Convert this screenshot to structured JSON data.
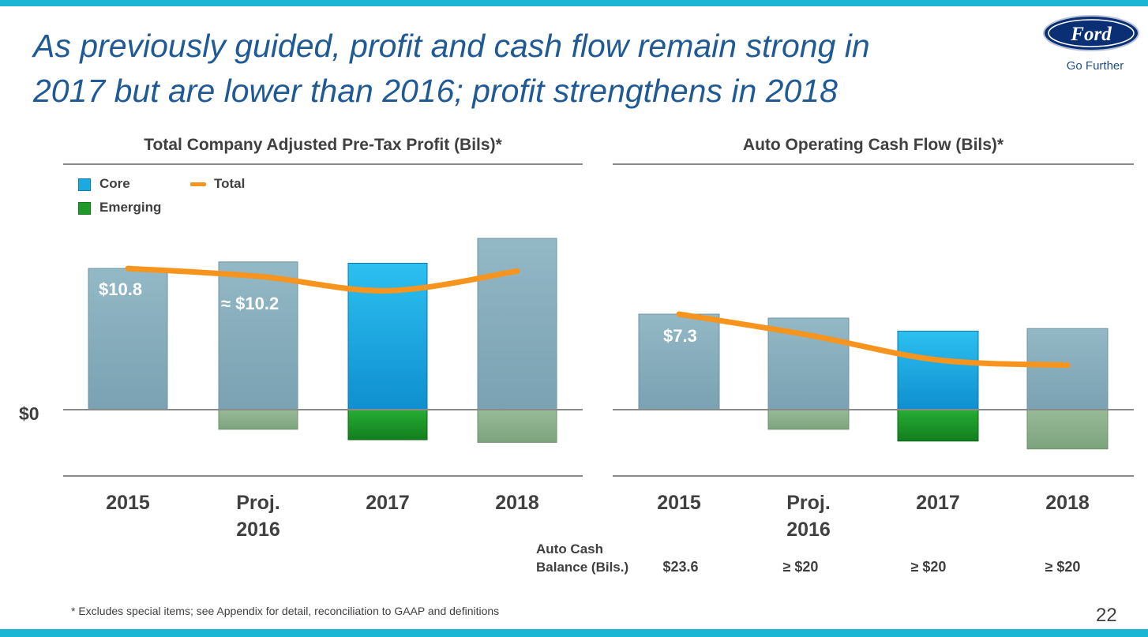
{
  "slide": {
    "title_line1": "As previously guided, profit and cash flow remain strong in",
    "title_line2": "2017 but are lower than 2016; profit strengthens in 2018",
    "logo_text": "Ford",
    "tagline": "Go Further",
    "footnote": "*  Excludes special items; see Appendix for detail, reconciliation to GAAP and definitions",
    "page_number": "22",
    "cash_balance_label_line1": "Auto Cash",
    "cash_balance_label_line2": "Balance (Bils.)",
    "cash_balance_values": [
      "$23.6",
      "≥ $20",
      "≥ $20",
      "≥ $20"
    ]
  },
  "legend": {
    "core": "Core",
    "emerging": "Emerging",
    "total": "Total"
  },
  "colors": {
    "accent": "#1ab6d4",
    "title": "#1f5a96",
    "core_muted": "#82a9b8",
    "core_highlight": "#1aa9e0",
    "emerging_muted": "#86ab86",
    "emerging_highlight": "#1f9a2a",
    "total_line": "#f7941d"
  },
  "chart_data": [
    {
      "type": "bar",
      "title": "Total Company Adjusted Pre-Tax Profit (Bils)*",
      "categories": [
        "2015",
        "Proj.\n2016",
        "2017",
        "2018"
      ],
      "highlight_index": 2,
      "ylim": [
        -4.6,
        12.5
      ],
      "zero_label": "$0",
      "series": [
        {
          "name": "Core",
          "values": [
            10.8,
            11.3,
            11.2,
            13.1
          ]
        },
        {
          "name": "Emerging",
          "values": [
            0,
            -1.5,
            -2.3,
            -2.5
          ]
        },
        {
          "name": "Total",
          "values": [
            10.8,
            10.2,
            9.1,
            10.6
          ]
        }
      ],
      "data_labels": [
        {
          "category": "2015",
          "text": "$10.8"
        },
        {
          "category": "Proj.\n2016",
          "text": "≈ $10.2"
        }
      ]
    },
    {
      "type": "bar",
      "title": "Auto Operating Cash Flow (Bils)*",
      "categories": [
        "2015",
        "Proj.\n2016",
        "2017",
        "2018"
      ],
      "highlight_index": 2,
      "ylim": [
        -4.3,
        9.5
      ],
      "series": [
        {
          "name": "Core",
          "values": [
            7.3,
            7.0,
            6.0,
            6.2
          ]
        },
        {
          "name": "Emerging",
          "values": [
            0,
            -1.5,
            -2.4,
            -3.0
          ]
        },
        {
          "name": "Total",
          "values": [
            7.3,
            5.7,
            3.8,
            3.4
          ]
        }
      ],
      "data_labels": [
        {
          "category": "2015",
          "text": "$7.3"
        }
      ]
    }
  ]
}
